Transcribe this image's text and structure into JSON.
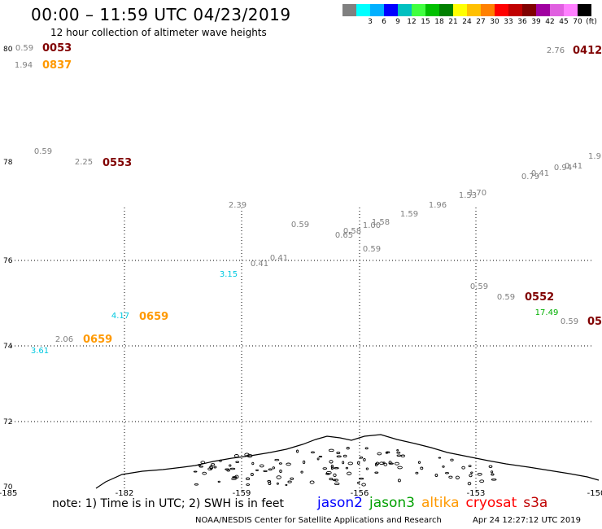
{
  "header": {
    "title": "00:00 – 11:59 UTC 04/23/2019",
    "subtitle": "12 hour collection of altimeter wave heights"
  },
  "legend": {
    "colors": [
      "#808080",
      "#00ffff",
      "#00b0ff",
      "#0000ff",
      "#00c0c0",
      "#40ff40",
      "#00c000",
      "#008000",
      "#ffff00",
      "#ffc000",
      "#ff8000",
      "#ff0000",
      "#c00000",
      "#800000",
      "#a000a0",
      "#e060e0",
      "#ff80ff",
      "#000000"
    ],
    "ticks": [
      "3",
      "6",
      "9",
      "12",
      "15",
      "18",
      "21",
      "24",
      "27",
      "30",
      "33",
      "36",
      "39",
      "42",
      "45",
      "70"
    ],
    "unit": "(ft)"
  },
  "axes": {
    "lat_labels": [
      "80",
      "78",
      "76",
      "74",
      "72",
      "70"
    ],
    "lon_labels": [
      "-185",
      "-182",
      "-159",
      "-156",
      "-153",
      "-150"
    ]
  },
  "observations": [
    {
      "text": "0.59",
      "color": "#808080"
    },
    {
      "text": "1.94",
      "color": "#808080"
    },
    {
      "text": "0.59",
      "color": "#808080"
    },
    {
      "text": "2.25",
      "color": "#808080"
    },
    {
      "text": "2.39",
      "color": "#808080"
    },
    {
      "text": "0.59",
      "color": "#808080"
    },
    {
      "text": "0.41",
      "color": "#808080"
    },
    {
      "text": "0.41",
      "color": "#808080"
    },
    {
      "text": "3.15",
      "color": "#00c8e0"
    },
    {
      "text": "0.65",
      "color": "#808080"
    },
    {
      "text": "0.58",
      "color": "#808080"
    },
    {
      "text": "1.00",
      "color": "#808080"
    },
    {
      "text": "1.58",
      "color": "#808080"
    },
    {
      "text": "0.59",
      "color": "#808080"
    },
    {
      "text": "1.59",
      "color": "#808080"
    },
    {
      "text": "1.96",
      "color": "#808080"
    },
    {
      "text": "1.53",
      "color": "#808080"
    },
    {
      "text": "1.70",
      "color": "#808080"
    },
    {
      "text": "0.79",
      "color": "#808080"
    },
    {
      "text": "0.41",
      "color": "#808080"
    },
    {
      "text": "0.94",
      "color": "#808080"
    },
    {
      "text": "0.41",
      "color": "#808080"
    },
    {
      "text": "1.9",
      "color": "#808080"
    },
    {
      "text": "2.76",
      "color": "#808080"
    },
    {
      "text": "0.59",
      "color": "#808080"
    },
    {
      "text": "0.59",
      "color": "#808080"
    },
    {
      "text": "17.49",
      "color": "#00b000"
    },
    {
      "text": "0.59",
      "color": "#808080"
    },
    {
      "text": "4.17",
      "color": "#00c8e0"
    },
    {
      "text": "2.06",
      "color": "#808080"
    },
    {
      "text": "3.61",
      "color": "#00c8e0"
    }
  ],
  "pass_times": [
    {
      "text": "0053",
      "color": "#800000"
    },
    {
      "text": "0837",
      "color": "#ff9900"
    },
    {
      "text": "0412",
      "color": "#800000"
    },
    {
      "text": "0553",
      "color": "#800000"
    },
    {
      "text": "0552",
      "color": "#800000"
    },
    {
      "text": "05",
      "color": "#800000"
    },
    {
      "text": "0659",
      "color": "#ff9900"
    },
    {
      "text": "0659",
      "color": "#ff9900"
    }
  ],
  "footer": {
    "note": "note: 1) Time is in UTC; 2) SWH is in feet",
    "satellites": [
      {
        "name": "jason2",
        "color": "#0000ff"
      },
      {
        "name": "jason3",
        "color": "#00a000"
      },
      {
        "name": "altika",
        "color": "#ff9900"
      },
      {
        "name": "cryosat",
        "color": "#ff0000"
      },
      {
        "name": "s3a",
        "color": "#c00000"
      }
    ],
    "credit": "NOAA/NESDIS Center for Satellite Applications and Research",
    "timestamp": "Apr 24 12:27:12 UTC 2019"
  }
}
